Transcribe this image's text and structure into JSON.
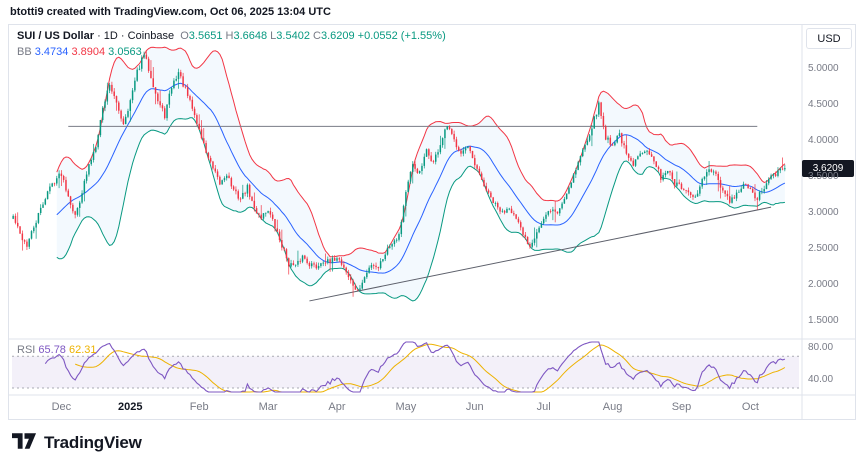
{
  "attribution": "btotti9 created with TradingView.com, Oct 06, 2025 13:04 UTC",
  "legend": {
    "line1": {
      "parts": [
        {
          "text": "SUI / US Dollar",
          "color": "#131722",
          "weight": 600
        },
        {
          "text": " · 1D · Coinbase",
          "color": "#131722"
        },
        {
          "text": "  O",
          "color": "#787b86"
        },
        {
          "text": "3.5651",
          "color": "#089981"
        },
        {
          "text": " H",
          "color": "#787b86"
        },
        {
          "text": "3.6648",
          "color": "#089981"
        },
        {
          "text": " L",
          "color": "#787b86"
        },
        {
          "text": "3.5402",
          "color": "#089981"
        },
        {
          "text": " C",
          "color": "#787b86"
        },
        {
          "text": "3.6209",
          "color": "#089981"
        },
        {
          "text": " +0.0552 (+1.55%)",
          "color": "#089981"
        }
      ]
    },
    "line2": {
      "parts": [
        {
          "text": "BB",
          "color": "#787b86"
        },
        {
          "text": " 3.4734",
          "color": "#2962ff"
        },
        {
          "text": " 3.8904",
          "color": "#f23645"
        },
        {
          "text": " 3.0563",
          "color": "#089981"
        }
      ]
    },
    "rsi": {
      "parts": [
        {
          "text": "RSI",
          "color": "#787b86"
        },
        {
          "text": " 65.78",
          "color": "#7e57c2"
        },
        {
          "text": " 62.31",
          "color": "#edb200"
        }
      ]
    }
  },
  "footer": {
    "brand": "TradingView"
  },
  "chart_data": {
    "type": "candlestick",
    "title": "SUI / US Dollar · 1D · Coinbase",
    "symbol": "SUI / US Dollar",
    "interval": "1D",
    "exchange": "Coinbase",
    "ohlc": {
      "open": 3.5651,
      "high": 3.6648,
      "low": 3.5402,
      "close": 3.6209,
      "change": "+0.0552",
      "change_pct": "+1.55%"
    },
    "bollinger": {
      "basis": 3.4734,
      "upper": 3.8904,
      "lower": 3.0563,
      "basis_color": "#2962ff",
      "upper_color": "#f23645",
      "lower_color": "#089981",
      "fill_color": "rgba(33,150,243,0.055)",
      "period": 20,
      "stdev_mult": 2
    },
    "rsi": {
      "value": 65.78,
      "ma_value": 62.31,
      "range": [
        25,
        88
      ],
      "upper_band": 70,
      "lower_band": 30,
      "line_color": "#7e57c2",
      "ma_color": "#edb200",
      "band_fill": "rgba(126,87,194,0.09)",
      "band_line_color": "#9598a1",
      "ticks": [
        {
          "label": "80.00",
          "value": 80
        },
        {
          "label": "40.00",
          "value": 40
        }
      ]
    },
    "price_axis": {
      "currency": "USD",
      "range": [
        1.28,
        5.55
      ],
      "last_price": 3.6209,
      "last_price_label": "3.6209",
      "ticks": [
        {
          "label": "5.0000",
          "value": 5.0
        },
        {
          "label": "4.5000",
          "value": 4.5
        },
        {
          "label": "4.0000",
          "value": 4.0
        },
        {
          "label": "3.5000",
          "value": 3.5
        },
        {
          "label": "3.0000",
          "value": 3.0
        },
        {
          "label": "2.5000",
          "value": 2.5
        },
        {
          "label": "2.0000",
          "value": 2.0
        },
        {
          "label": "1.5000",
          "value": 1.5
        }
      ]
    },
    "x_axis": {
      "labels": [
        {
          "text": "Dec",
          "idx": 7
        },
        {
          "text": "2025",
          "idx": 17,
          "bold": true
        },
        {
          "text": "Feb",
          "idx": 27
        },
        {
          "text": "Mar",
          "idx": 37
        },
        {
          "text": "Apr",
          "idx": 47
        },
        {
          "text": "May",
          "idx": 57
        },
        {
          "text": "Jun",
          "idx": 67
        },
        {
          "text": "Jul",
          "idx": 77
        },
        {
          "text": "Aug",
          "idx": 87
        },
        {
          "text": "Sep",
          "idx": 97
        },
        {
          "text": "Oct",
          "idx": 107
        }
      ]
    },
    "candle_colors": {
      "up": "#089981",
      "down": "#f23645"
    },
    "closes": [
      2.95,
      2.7,
      2.55,
      2.8,
      3.05,
      3.3,
      3.45,
      3.55,
      3.25,
      2.95,
      3.3,
      3.65,
      3.95,
      4.45,
      4.8,
      4.5,
      4.25,
      4.55,
      4.95,
      5.2,
      4.9,
      4.55,
      4.35,
      4.75,
      4.95,
      4.7,
      4.45,
      4.15,
      3.85,
      3.6,
      3.4,
      3.55,
      3.3,
      3.2,
      3.35,
      3.05,
      2.95,
      3.05,
      2.8,
      2.55,
      2.3,
      2.25,
      2.4,
      2.3,
      2.25,
      2.35,
      2.3,
      2.4,
      2.25,
      2.05,
      1.9,
      2.1,
      2.3,
      2.25,
      2.45,
      2.6,
      2.7,
      3.3,
      3.65,
      3.55,
      3.85,
      3.7,
      3.95,
      4.2,
      4.0,
      3.85,
      3.9,
      3.65,
      3.45,
      3.25,
      3.1,
      3.0,
      3.1,
      2.9,
      2.7,
      2.55,
      2.75,
      2.9,
      3.05,
      3.0,
      3.2,
      3.45,
      3.7,
      3.95,
      4.2,
      4.5,
      4.05,
      3.95,
      4.1,
      3.8,
      3.65,
      3.85,
      3.9,
      3.7,
      3.5,
      3.6,
      3.4,
      3.35,
      3.25,
      3.2,
      3.45,
      3.6,
      3.5,
      3.3,
      3.15,
      3.25,
      3.4,
      3.3,
      3.2,
      3.35,
      3.5,
      3.56,
      3.6209
    ],
    "annotations": [
      {
        "type": "hline",
        "price1": 4.2,
        "price2": 4.2,
        "x1_idx": 8,
        "x2_idx": 108,
        "color": "#787b86"
      },
      {
        "type": "trendline",
        "price1": 1.78,
        "price2": 3.08,
        "x1_idx": 43,
        "x2_idx": 110,
        "color": "#5d606b"
      }
    ]
  }
}
